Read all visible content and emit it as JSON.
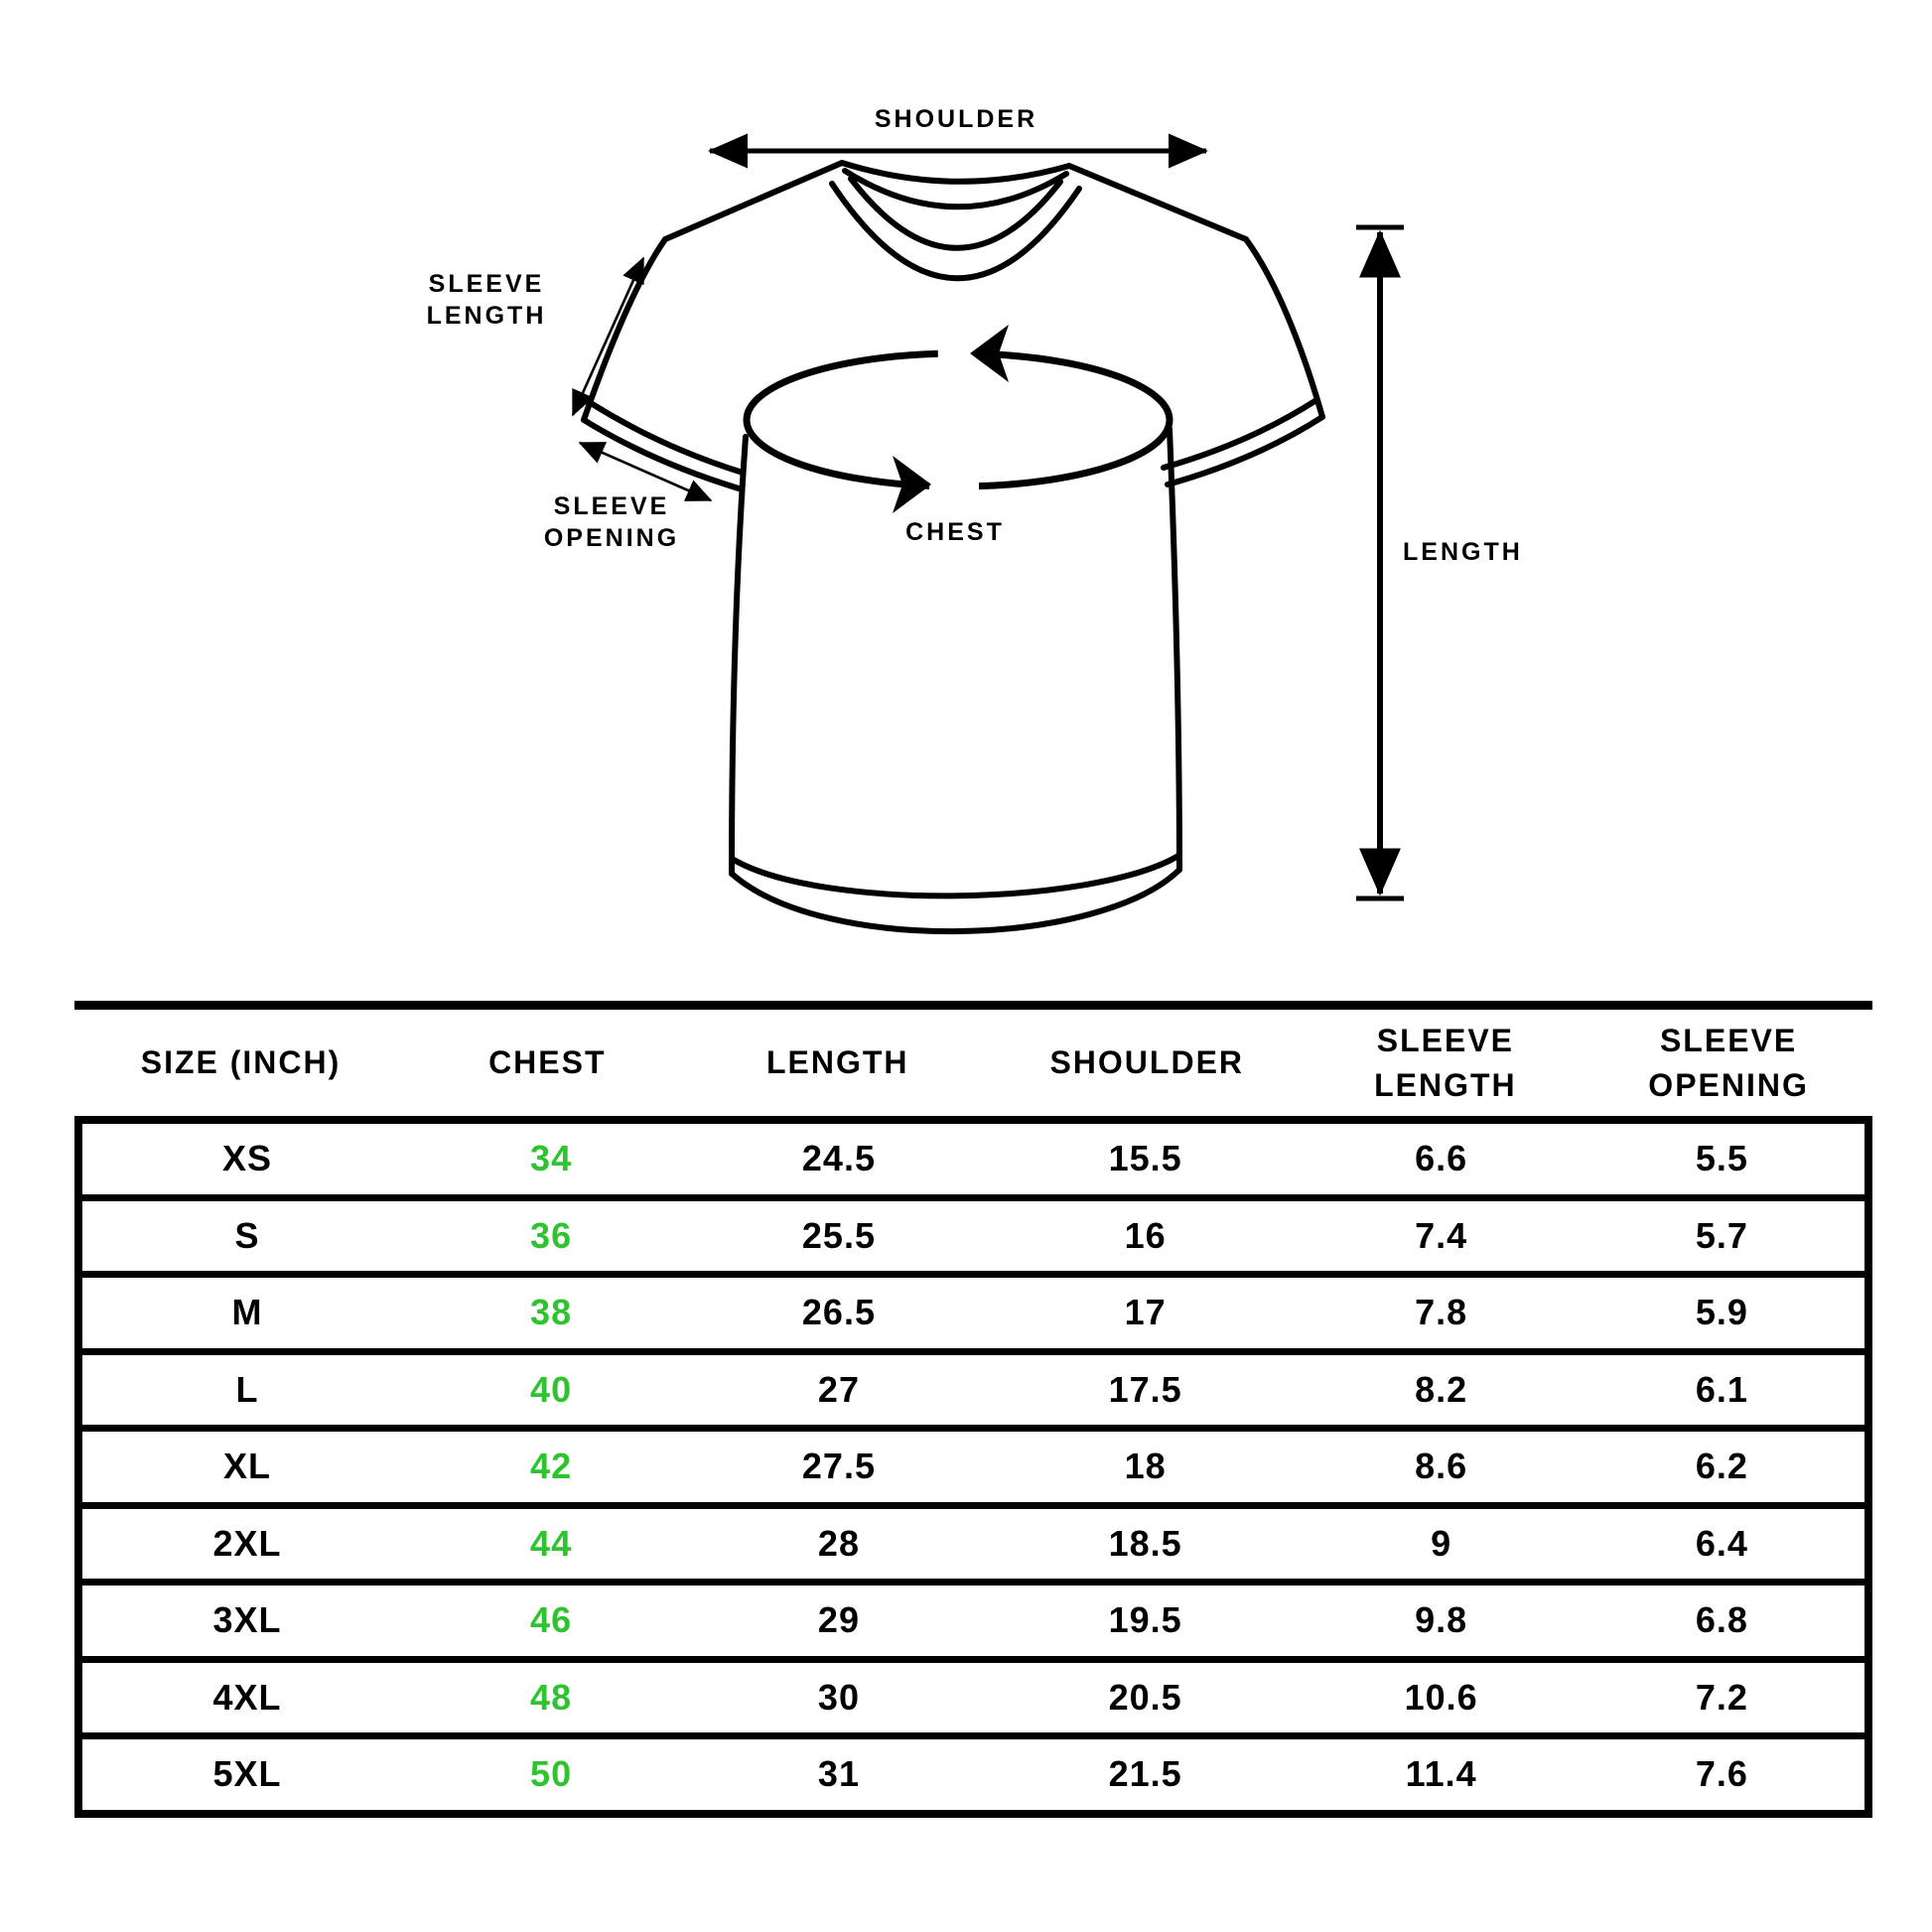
{
  "diagram": {
    "labels": {
      "shoulder": "SHOULDER",
      "sleeve_length_line1": "SLEEVE",
      "sleeve_length_line2": "LENGTH",
      "sleeve_opening_line1": "SLEEVE",
      "sleeve_opening_line2": "OPENING",
      "chest": "CHEST",
      "length": "LENGTH"
    }
  },
  "size_chart": {
    "columns": [
      {
        "line1": "SIZE (INCH)"
      },
      {
        "line1": "CHEST"
      },
      {
        "line1": "LENGTH"
      },
      {
        "line1": "SHOULDER"
      },
      {
        "line1": "SLEEVE",
        "line2": "LENGTH"
      },
      {
        "line1": "SLEEVE",
        "line2": "OPENING"
      }
    ],
    "rows": [
      {
        "size": "XS",
        "chest": "34",
        "length": "24.5",
        "shoulder": "15.5",
        "sleeve_length": "6.6",
        "sleeve_opening": "5.5"
      },
      {
        "size": "S",
        "chest": "36",
        "length": "25.5",
        "shoulder": "16",
        "sleeve_length": "7.4",
        "sleeve_opening": "5.7"
      },
      {
        "size": "M",
        "chest": "38",
        "length": "26.5",
        "shoulder": "17",
        "sleeve_length": "7.8",
        "sleeve_opening": "5.9"
      },
      {
        "size": "L",
        "chest": "40",
        "length": "27",
        "shoulder": "17.5",
        "sleeve_length": "8.2",
        "sleeve_opening": "6.1"
      },
      {
        "size": "XL",
        "chest": "42",
        "length": "27.5",
        "shoulder": "18",
        "sleeve_length": "8.6",
        "sleeve_opening": "6.2"
      },
      {
        "size": "2XL",
        "chest": "44",
        "length": "28",
        "shoulder": "18.5",
        "sleeve_length": "9",
        "sleeve_opening": "6.4"
      },
      {
        "size": "3XL",
        "chest": "46",
        "length": "29",
        "shoulder": "19.5",
        "sleeve_length": "9.8",
        "sleeve_opening": "6.8"
      },
      {
        "size": "4XL",
        "chest": "48",
        "length": "30",
        "shoulder": "20.5",
        "sleeve_length": "10.6",
        "sleeve_opening": "7.2"
      },
      {
        "size": "5XL",
        "chest": "50",
        "length": "31",
        "shoulder": "21.5",
        "sleeve_length": "11.4",
        "sleeve_opening": "7.6"
      }
    ]
  },
  "colors": {
    "ink": "#000000",
    "background": "#ffffff",
    "chest_accent": "#2fc42f"
  }
}
